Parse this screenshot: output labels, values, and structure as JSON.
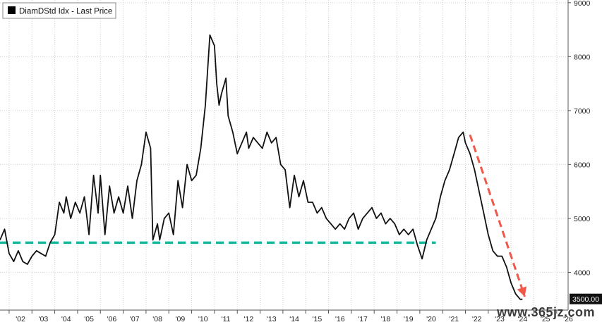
{
  "legend": {
    "label": "DiamDStd Idx - Last Price",
    "swatch_color": "#000000"
  },
  "watermark_text": "www.365jz.com",
  "colors": {
    "series": "#111111",
    "support": "#16b79b",
    "trend": "#f0584a",
    "grid": "#d0d0d0",
    "axis": "#555555"
  },
  "chart_data": {
    "type": "line",
    "title": "",
    "xlabel": "",
    "ylabel": "",
    "x_tick_labels": [
      "'02",
      "'03",
      "'04",
      "'05",
      "'06",
      "'07",
      "'08",
      "'09",
      "'10",
      "'11",
      "'12",
      "'13",
      "'14",
      "'15",
      "'16",
      "'17",
      "'18",
      "'19",
      "'20",
      "'21",
      "'22",
      "'23",
      "'24",
      "'25",
      "'26"
    ],
    "y_ticks": [
      4000,
      5000,
      6000,
      7000,
      8000,
      9000
    ],
    "ylim": [
      3300,
      9050
    ],
    "xlim": [
      2001.6,
      2026.5
    ],
    "grid": true,
    "legend_position": "top-left",
    "last_value_label": "3500.00",
    "series": [
      {
        "name": "DiamDStd Idx - Last Price",
        "x": [
          2001.6,
          2001.8,
          2002.0,
          2002.2,
          2002.4,
          2002.6,
          2002.8,
          2003.0,
          2003.2,
          2003.4,
          2003.6,
          2003.8,
          2004.0,
          2004.2,
          2004.4,
          2004.5,
          2004.7,
          2004.9,
          2005.1,
          2005.3,
          2005.5,
          2005.7,
          2005.9,
          2006.0,
          2006.2,
          2006.4,
          2006.6,
          2006.8,
          2007.0,
          2007.2,
          2007.4,
          2007.6,
          2007.8,
          2008.0,
          2008.2,
          2008.3,
          2008.5,
          2008.6,
          2008.8,
          2009.0,
          2009.2,
          2009.4,
          2009.6,
          2009.8,
          2010.0,
          2010.2,
          2010.4,
          2010.6,
          2010.8,
          2011.0,
          2011.1,
          2011.2,
          2011.3,
          2011.5,
          2011.6,
          2011.8,
          2012.0,
          2012.2,
          2012.4,
          2012.5,
          2012.7,
          2012.9,
          2013.1,
          2013.3,
          2013.5,
          2013.7,
          2013.9,
          2014.1,
          2014.3,
          2014.5,
          2014.7,
          2014.9,
          2015.1,
          2015.3,
          2015.5,
          2015.7,
          2015.9,
          2016.1,
          2016.3,
          2016.5,
          2016.7,
          2016.9,
          2017.1,
          2017.3,
          2017.5,
          2017.7,
          2017.9,
          2018.1,
          2018.3,
          2018.5,
          2018.7,
          2018.9,
          2019.1,
          2019.3,
          2019.5,
          2019.7,
          2019.9,
          2020.1,
          2020.3,
          2020.5,
          2020.7,
          2020.9,
          2021.1,
          2021.3,
          2021.5,
          2021.7,
          2021.9,
          2022.0,
          2022.2,
          2022.4,
          2022.6,
          2022.8,
          2023.0,
          2023.2,
          2023.4,
          2023.6,
          2023.8,
          2024.0,
          2024.2,
          2024.4,
          2024.5
        ],
        "y": [
          4600,
          4800,
          4350,
          4200,
          4400,
          4200,
          4150,
          4300,
          4400,
          4350,
          4300,
          4550,
          4700,
          5300,
          5100,
          5400,
          5000,
          5300,
          5100,
          5400,
          4700,
          5800,
          5100,
          5800,
          4700,
          5600,
          5100,
          5400,
          5100,
          5600,
          5000,
          5700,
          6000,
          6600,
          6300,
          4600,
          4900,
          4600,
          5000,
          5100,
          4700,
          5700,
          5200,
          6000,
          5700,
          5800,
          6300,
          7100,
          8400,
          8200,
          7500,
          7100,
          7300,
          7600,
          6900,
          6600,
          6200,
          6400,
          6600,
          6300,
          6500,
          6400,
          6300,
          6600,
          6400,
          6500,
          6000,
          5900,
          5200,
          5800,
          5400,
          5700,
          5300,
          5300,
          5100,
          5200,
          5000,
          4900,
          4800,
          4900,
          4800,
          5000,
          5100,
          4800,
          5000,
          5100,
          5200,
          5000,
          5100,
          4900,
          5000,
          4900,
          4700,
          4800,
          4700,
          4800,
          4500,
          4250,
          4600,
          4800,
          5000,
          5400,
          5700,
          5900,
          6200,
          6500,
          6600,
          6400,
          6200,
          5900,
          5500,
          5100,
          4700,
          4400,
          4300,
          4300,
          4100,
          3800,
          3600,
          3500,
          3500
        ]
      }
    ],
    "annotations": [
      {
        "type": "support-line",
        "y": 4550,
        "x_from": 2001.6,
        "x_to": 2020.7,
        "style": "dashed"
      },
      {
        "type": "trend-arrow",
        "from": {
          "x": 2022.2,
          "y": 6550
        },
        "to": {
          "x": 2024.6,
          "y": 3550
        },
        "style": "dashed"
      }
    ]
  }
}
